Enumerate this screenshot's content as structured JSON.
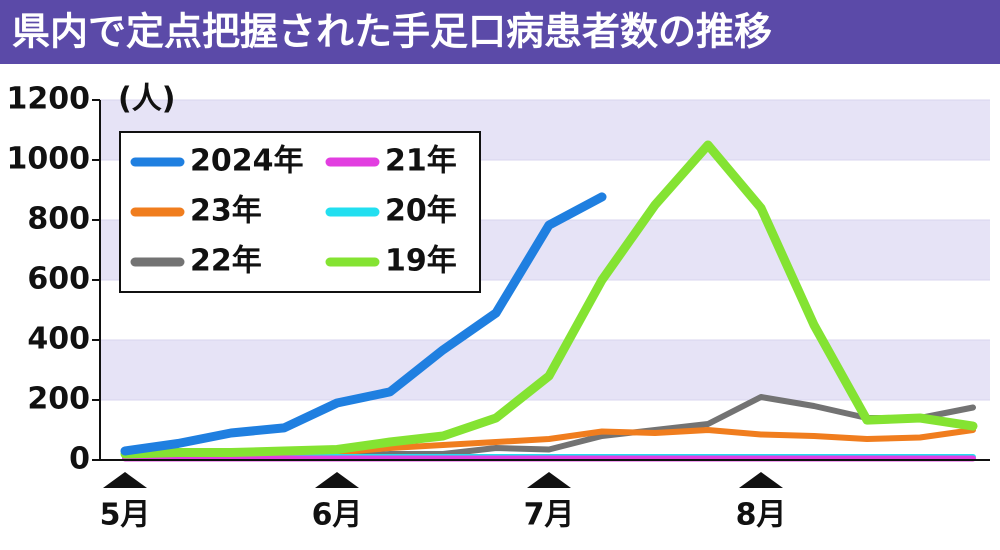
{
  "chart_data": {
    "type": "line",
    "title": "県内で定点把握された手足口病患者数の推移",
    "y_label": "(人)",
    "categories": [
      "5月",
      null,
      null,
      null,
      "6月",
      null,
      null,
      null,
      "7月",
      null,
      null,
      null,
      "8月",
      null,
      null,
      null,
      null
    ],
    "series": [
      {
        "name": "2024年",
        "color": "#1f7fe0",
        "values": [
          30,
          55,
          90,
          107,
          190,
          227,
          367,
          490,
          783,
          877,
          null,
          null,
          null,
          null,
          null,
          null,
          null
        ]
      },
      {
        "name": "23年",
        "color": "#f07d1e",
        "values": [
          20,
          15,
          15,
          20,
          25,
          40,
          50,
          60,
          70,
          95,
          90,
          100,
          85,
          80,
          70,
          75,
          100
        ]
      },
      {
        "name": "22年",
        "color": "#737373",
        "values": [
          10,
          10,
          10,
          10,
          10,
          20,
          20,
          40,
          35,
          80,
          100,
          120,
          210,
          180,
          140,
          140,
          175
        ]
      },
      {
        "name": "21年",
        "color": "#e23ee0",
        "values": [
          5,
          5,
          5,
          5,
          5,
          5,
          5,
          5,
          5,
          5,
          5,
          5,
          5,
          5,
          5,
          5,
          5
        ]
      },
      {
        "name": "20年",
        "color": "#22dff0",
        "values": [
          10,
          10,
          10,
          10,
          10,
          10,
          10,
          10,
          10,
          10,
          10,
          10,
          10,
          10,
          10,
          10,
          10
        ]
      },
      {
        "name": "19年",
        "color": "#84e332",
        "values": [
          20,
          25,
          25,
          30,
          35,
          60,
          80,
          140,
          280,
          600,
          850,
          1050,
          840,
          450,
          133,
          140,
          113
        ]
      }
    ],
    "ylim": [
      0,
      1200
    ],
    "yticks": [
      0,
      200,
      400,
      600,
      800,
      1000,
      1200
    ],
    "grid": true
  }
}
